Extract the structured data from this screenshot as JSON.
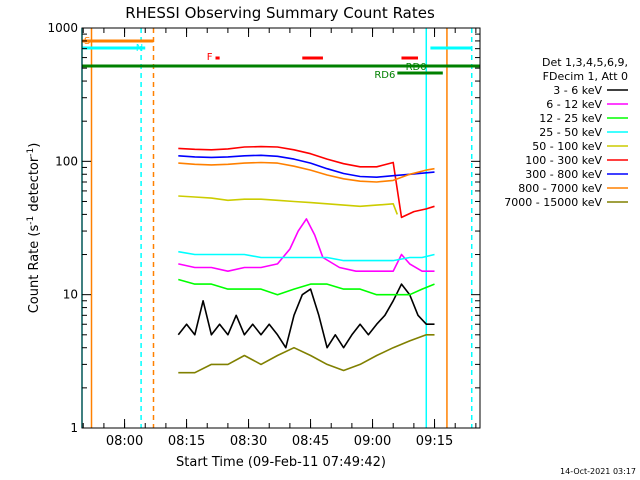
{
  "chart_data": {
    "type": "line",
    "title": "RHESSI Observing Summary Count Rates",
    "xlabel": "Start Time (09-Feb-11 07:49:42)",
    "ylabel_main": "Count Rate (s",
    "ylabel_sup": "-1",
    "ylabel_tail": " detector",
    "ylabel_sup2": "-1",
    "ylabel_close": ")",
    "yscale": "log",
    "ylim": [
      1,
      1000
    ],
    "y_ticks": [
      {
        "value": 1,
        "label": "1"
      },
      {
        "value": 10,
        "label": "10"
      },
      {
        "value": 100,
        "label": "100"
      },
      {
        "value": 1000,
        "label": "1000"
      }
    ],
    "xlim": [
      "07:49:42",
      "09:26:00"
    ],
    "x_ticks": [
      {
        "t": "08:00",
        "label": "08:00"
      },
      {
        "t": "08:15",
        "label": "08:15"
      },
      {
        "t": "08:30",
        "label": "08:30"
      },
      {
        "t": "08:45",
        "label": "08:45"
      },
      {
        "t": "09:00",
        "label": "09:00"
      },
      {
        "t": "09:15",
        "label": "09:15"
      }
    ],
    "legend": {
      "header1": "Det 1,3,4,5,6,9,",
      "header2": "FDecim 1, Att 0",
      "placement": "right"
    },
    "series": [
      {
        "name": "3 - 6 keV",
        "color": "#000000",
        "points": [
          [
            "08:13",
            5
          ],
          [
            "08:15",
            6
          ],
          [
            "08:17",
            5
          ],
          [
            "08:19",
            9
          ],
          [
            "08:21",
            5
          ],
          [
            "08:23",
            6
          ],
          [
            "08:25",
            5
          ],
          [
            "08:27",
            7
          ],
          [
            "08:29",
            5
          ],
          [
            "08:31",
            6
          ],
          [
            "08:33",
            5
          ],
          [
            "08:35",
            6
          ],
          [
            "08:37",
            5
          ],
          [
            "08:39",
            4
          ],
          [
            "08:41",
            7
          ],
          [
            "08:43",
            10
          ],
          [
            "08:45",
            11
          ],
          [
            "08:47",
            7
          ],
          [
            "08:49",
            4
          ],
          [
            "08:51",
            5
          ],
          [
            "08:53",
            4
          ],
          [
            "08:55",
            5
          ],
          [
            "08:57",
            6
          ],
          [
            "08:59",
            5
          ],
          [
            "09:01",
            6
          ],
          [
            "09:03",
            7
          ],
          [
            "09:05",
            9
          ],
          [
            "09:07",
            12
          ],
          [
            "09:09",
            10
          ],
          [
            "09:11",
            7
          ],
          [
            "09:13",
            6
          ],
          [
            "09:15",
            6
          ]
        ]
      },
      {
        "name": "6 - 12 keV",
        "color": "#ff00ff",
        "points": [
          [
            "08:13",
            17
          ],
          [
            "08:17",
            16
          ],
          [
            "08:21",
            16
          ],
          [
            "08:25",
            15
          ],
          [
            "08:29",
            16
          ],
          [
            "08:33",
            16
          ],
          [
            "08:37",
            17
          ],
          [
            "08:40",
            22
          ],
          [
            "08:42",
            30
          ],
          [
            "08:44",
            37
          ],
          [
            "08:46",
            28
          ],
          [
            "08:48",
            19
          ],
          [
            "08:52",
            16
          ],
          [
            "08:56",
            15
          ],
          [
            "09:00",
            15
          ],
          [
            "09:03",
            15
          ],
          [
            "09:05",
            15
          ],
          [
            "09:07",
            20
          ],
          [
            "09:09",
            17
          ],
          [
            "09:12",
            15
          ],
          [
            "09:15",
            15
          ]
        ]
      },
      {
        "name": "12 - 25 keV",
        "color": "#00ff00",
        "points": [
          [
            "08:13",
            13
          ],
          [
            "08:17",
            12
          ],
          [
            "08:21",
            12
          ],
          [
            "08:25",
            11
          ],
          [
            "08:29",
            11
          ],
          [
            "08:33",
            11
          ],
          [
            "08:37",
            10
          ],
          [
            "08:41",
            11
          ],
          [
            "08:45",
            12
          ],
          [
            "08:49",
            12
          ],
          [
            "08:53",
            11
          ],
          [
            "08:57",
            11
          ],
          [
            "09:01",
            10
          ],
          [
            "09:05",
            10
          ],
          [
            "09:09",
            10
          ],
          [
            "09:12",
            11
          ],
          [
            "09:15",
            12
          ]
        ]
      },
      {
        "name": "25 - 50 keV",
        "color": "#00ffff",
        "points": [
          [
            "08:13",
            21
          ],
          [
            "08:17",
            20
          ],
          [
            "08:21",
            20
          ],
          [
            "08:25",
            20
          ],
          [
            "08:29",
            20
          ],
          [
            "08:33",
            19
          ],
          [
            "08:37",
            19
          ],
          [
            "08:41",
            19
          ],
          [
            "08:45",
            19
          ],
          [
            "08:49",
            19
          ],
          [
            "08:53",
            18
          ],
          [
            "08:57",
            18
          ],
          [
            "09:01",
            18
          ],
          [
            "09:05",
            18
          ],
          [
            "09:09",
            19
          ],
          [
            "09:12",
            19
          ],
          [
            "09:15",
            20
          ]
        ]
      },
      {
        "name": "50 - 100 keV",
        "color": "#cccc00",
        "points": [
          [
            "08:13",
            55
          ],
          [
            "08:17",
            54
          ],
          [
            "08:21",
            53
          ],
          [
            "08:25",
            51
          ],
          [
            "08:29",
            52
          ],
          [
            "08:33",
            52
          ],
          [
            "08:37",
            51
          ],
          [
            "08:41",
            50
          ],
          [
            "08:45",
            49
          ],
          [
            "08:49",
            48
          ],
          [
            "08:53",
            47
          ],
          [
            "08:57",
            46
          ],
          [
            "09:01",
            47
          ],
          [
            "09:05",
            48
          ],
          [
            "09:06",
            40
          ]
        ]
      },
      {
        "name": "100 - 300 keV",
        "color": "#ff0000",
        "points": [
          [
            "08:13",
            125
          ],
          [
            "08:17",
            123
          ],
          [
            "08:21",
            122
          ],
          [
            "08:25",
            124
          ],
          [
            "08:29",
            128
          ],
          [
            "08:33",
            129
          ],
          [
            "08:37",
            128
          ],
          [
            "08:41",
            122
          ],
          [
            "08:45",
            114
          ],
          [
            "08:49",
            104
          ],
          [
            "08:53",
            96
          ],
          [
            "08:57",
            91
          ],
          [
            "09:01",
            91
          ],
          [
            "09:05",
            98
          ],
          [
            "09:07",
            38
          ],
          [
            "09:10",
            42
          ],
          [
            "09:13",
            44
          ],
          [
            "09:15",
            46
          ]
        ]
      },
      {
        "name": "300 - 800 keV",
        "color": "#0000ff",
        "points": [
          [
            "08:13",
            110
          ],
          [
            "08:17",
            108
          ],
          [
            "08:21",
            107
          ],
          [
            "08:25",
            108
          ],
          [
            "08:29",
            110
          ],
          [
            "08:33",
            111
          ],
          [
            "08:37",
            109
          ],
          [
            "08:41",
            104
          ],
          [
            "08:45",
            97
          ],
          [
            "08:49",
            88
          ],
          [
            "08:53",
            81
          ],
          [
            "08:57",
            77
          ],
          [
            "09:01",
            76
          ],
          [
            "09:05",
            78
          ],
          [
            "09:09",
            80
          ],
          [
            "09:13",
            82
          ],
          [
            "09:15",
            83
          ]
        ]
      },
      {
        "name": "800 - 7000 keV",
        "color": "#ff8000",
        "points": [
          [
            "08:13",
            97
          ],
          [
            "08:17",
            95
          ],
          [
            "08:21",
            94
          ],
          [
            "08:25",
            95
          ],
          [
            "08:29",
            97
          ],
          [
            "08:33",
            98
          ],
          [
            "08:37",
            97
          ],
          [
            "08:41",
            92
          ],
          [
            "08:45",
            86
          ],
          [
            "08:49",
            79
          ],
          [
            "08:53",
            74
          ],
          [
            "08:57",
            71
          ],
          [
            "09:01",
            70
          ],
          [
            "09:05",
            72
          ],
          [
            "09:09",
            80
          ],
          [
            "09:13",
            86
          ],
          [
            "09:15",
            88
          ]
        ]
      },
      {
        "name": "7000 - 15000 keV",
        "color": "#808000",
        "points": [
          [
            "08:13",
            2.6
          ],
          [
            "08:17",
            2.6
          ],
          [
            "08:21",
            3.0
          ],
          [
            "08:25",
            3.0
          ],
          [
            "08:29",
            3.5
          ],
          [
            "08:33",
            3.0
          ],
          [
            "08:37",
            3.5
          ],
          [
            "08:41",
            4.0
          ],
          [
            "08:45",
            3.5
          ],
          [
            "08:49",
            3.0
          ],
          [
            "08:53",
            2.7
          ],
          [
            "08:57",
            3.0
          ],
          [
            "09:01",
            3.5
          ],
          [
            "09:05",
            4.0
          ],
          [
            "09:09",
            4.5
          ],
          [
            "09:13",
            5.0
          ],
          [
            "09:15",
            5.0
          ]
        ]
      }
    ],
    "status_bars": [
      {
        "label": "S",
        "color": "#ff8000",
        "start": "07:49:42",
        "end": "08:07"
      },
      {
        "label": "N",
        "color": "#00ffff",
        "start": "07:49:42",
        "end": "08:05"
      },
      {
        "label": "",
        "color": "#00ffff",
        "start": "09:14",
        "end": "09:24"
      },
      {
        "label": "F",
        "color": "#ff0000",
        "start": "08:22",
        "end": "08:23"
      },
      {
        "label": "",
        "color": "#ff0000",
        "start": "08:43",
        "end": "08:48"
      },
      {
        "label": "",
        "color": "#ff0000",
        "start": "09:07",
        "end": "09:11"
      },
      {
        "label": "RD0",
        "color": "#008000",
        "start": "07:49:42",
        "end": "09:26"
      },
      {
        "label": "RD6",
        "color": "#008000",
        "start": "09:06",
        "end": "09:17"
      }
    ],
    "vertical_markers": [
      {
        "t": "07:49:42",
        "color": "#00ffff",
        "style": "solid"
      },
      {
        "t": "07:52",
        "color": "#ff8000",
        "style": "solid"
      },
      {
        "t": "08:04",
        "color": "#00ffff",
        "style": "dashed"
      },
      {
        "t": "08:07",
        "color": "#ff8000",
        "style": "dashed"
      },
      {
        "t": "09:13",
        "color": "#00ffff",
        "style": "solid"
      },
      {
        "t": "09:18",
        "color": "#ff8000",
        "style": "solid"
      },
      {
        "t": "09:24",
        "color": "#00ffff",
        "style": "dashed"
      }
    ]
  },
  "footer": {
    "timestamp": "14-Oct-2021 03:17"
  }
}
